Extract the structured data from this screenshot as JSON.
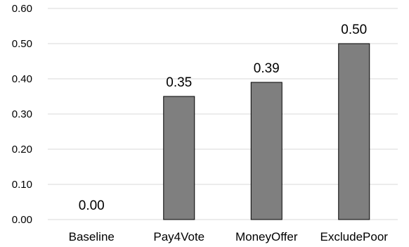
{
  "chart_data": {
    "type": "bar",
    "categories": [
      "Baseline",
      "Pay4Vote",
      "MoneyOffer",
      "ExcludePoor"
    ],
    "values": [
      0.0,
      0.35,
      0.39,
      0.5
    ],
    "data_labels": [
      "0.00",
      "0.35",
      "0.39",
      "0.50"
    ],
    "yticks": [
      "0.00",
      "0.10",
      "0.20",
      "0.30",
      "0.40",
      "0.50",
      "0.60"
    ],
    "ylim": [
      0,
      0.6
    ],
    "grid": true,
    "legend": "none",
    "title": "",
    "xlabel": "",
    "ylabel": "",
    "colors": {
      "bar": "#7f7f7f",
      "bar_edge": "#000000",
      "grid": "#d9d9d9",
      "axis": "#d9d9d9"
    }
  }
}
